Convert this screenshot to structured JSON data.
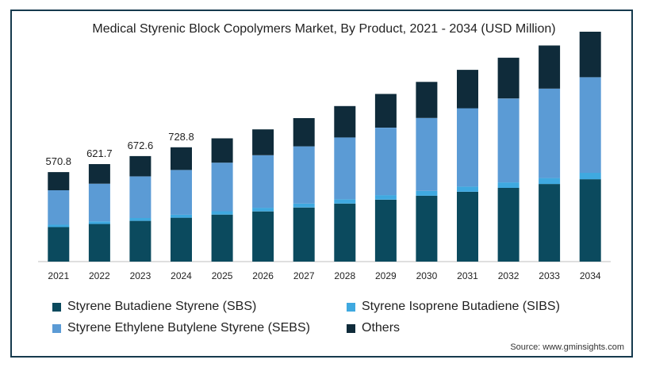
{
  "title": "Medical Styrenic Block Copolymers Market, By Product, 2021 - 2034 (USD Million)",
  "source": "Source: www.gminsights.com",
  "colors": {
    "sbs": "#0b4a5e",
    "sibs": "#3fa9e0",
    "sebs": "#5b9bd5",
    "others": "#0f2b3a",
    "frame": "#163a4d"
  },
  "chart_data": {
    "type": "bar",
    "stacked": true,
    "title": "Medical Styrenic Block Copolymers Market, By Product, 2021 - 2034 (USD Million)",
    "categories": [
      "2021",
      "2022",
      "2023",
      "2024",
      "2025",
      "2026",
      "2027",
      "2028",
      "2029",
      "2030",
      "2031",
      "2032",
      "2033",
      "2034"
    ],
    "series": [
      {
        "name": "Styrene Butadiene Styrene (SBS)",
        "color": "#0b4a5e",
        "values": [
          220,
          240,
          260,
          280,
          300,
          320,
          345,
          370,
          395,
          420,
          445,
          470,
          495,
          525
        ]
      },
      {
        "name": "Styrene Isoprene Butadiene (SIBS)",
        "color": "#3fa9e0",
        "values": [
          15,
          17,
          18,
          19,
          21,
          23,
          25,
          27,
          29,
          31,
          33,
          35,
          38,
          41
        ]
      },
      {
        "name": "Styrene Ethylene Butylene Styrene (SEBS)",
        "color": "#5b9bd5",
        "values": [
          220,
          240,
          265,
          285,
          310,
          335,
          365,
          395,
          430,
          465,
          500,
          535,
          570,
          610
        ]
      },
      {
        "name": "Others",
        "color": "#0f2b3a",
        "values": [
          115.8,
          124.7,
          129.6,
          144.8,
          155,
          165,
          180,
          200,
          215,
          230,
          245,
          260,
          275,
          290
        ]
      }
    ],
    "data_labels": [
      "570.8",
      "621.7",
      "672.6",
      "728.8"
    ],
    "ylim": [
      0,
      1466
    ],
    "legend_position": "bottom",
    "grid": false
  }
}
